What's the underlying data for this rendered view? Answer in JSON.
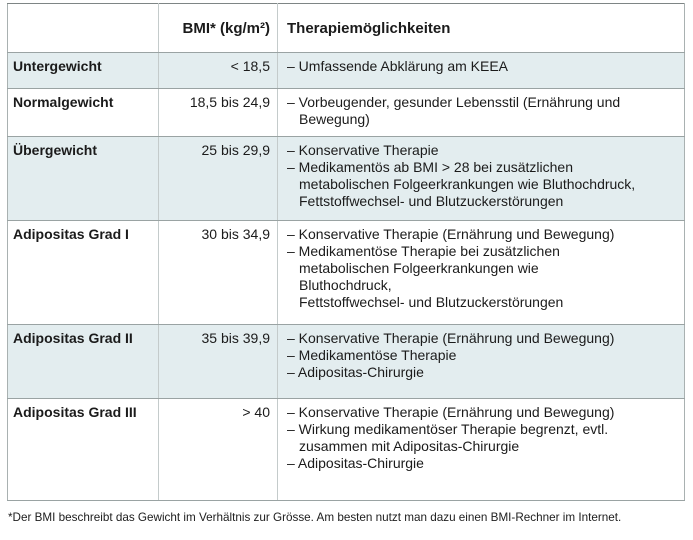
{
  "colors": {
    "alt_row_bg": "#e3edef",
    "grid_line": "#9aa3a3",
    "column_line": "#c4cbcb",
    "text": "#1b1b1b"
  },
  "table": {
    "columns": [
      {
        "label": ""
      },
      {
        "label": "BMI* (kg/m²)"
      },
      {
        "label": "Therapiemöglichkeiten"
      }
    ],
    "rows": [
      {
        "category": "Untergewicht",
        "bmi": "< 18,5",
        "items": [
          "– Umfassende Abklärung am KEEA"
        ]
      },
      {
        "category": "Normalgewicht",
        "bmi": "18,5 bis 24,9",
        "items": [
          "– Vorbeugender, gesunder Lebensstil (Ernährung und\nBewegung)"
        ]
      },
      {
        "category": "Übergewicht",
        "bmi": "25 bis 29,9",
        "items": [
          "– Konservative Therapie",
          "– Medikamentös ab BMI > 28 bei zusätzlichen\nmetabolischen Folgeerkrankungen wie Bluthochdruck,\nFettstoffwechsel- und Blutzuckerstörungen"
        ]
      },
      {
        "category": "Adipositas Grad I",
        "bmi": "30 bis 34,9",
        "items": [
          "– Konservative Therapie (Ernährung und Bewegung)",
          "– Medikamentöse Therapie bei zusätzlichen\nmetabolischen Folgeerkrankungen wie\nBluthochdruck,\nFettstoffwechsel- und Blutzuckerstörungen"
        ]
      },
      {
        "category": "Adipositas Grad II",
        "bmi": "35 bis 39,9",
        "items": [
          "– Konservative Therapie (Ernährung und Bewegung)",
          "– Medikamentöse Therapie",
          "– Adipositas-Chirurgie"
        ]
      },
      {
        "category": "Adipositas Grad III",
        "bmi": "> 40",
        "items": [
          "– Konservative Therapie (Ernährung und Bewegung)",
          "– Wirkung medikamentöser Therapie begrenzt, evtl.\nzusammen mit Adipositas-Chirurgie",
          "– Adipositas-Chirurgie"
        ]
      }
    ]
  },
  "footnote": "*Der BMI beschreibt das Gewicht im Verhältnis zur Grösse. Am besten nutzt man dazu einen BMI-Rechner im Internet."
}
